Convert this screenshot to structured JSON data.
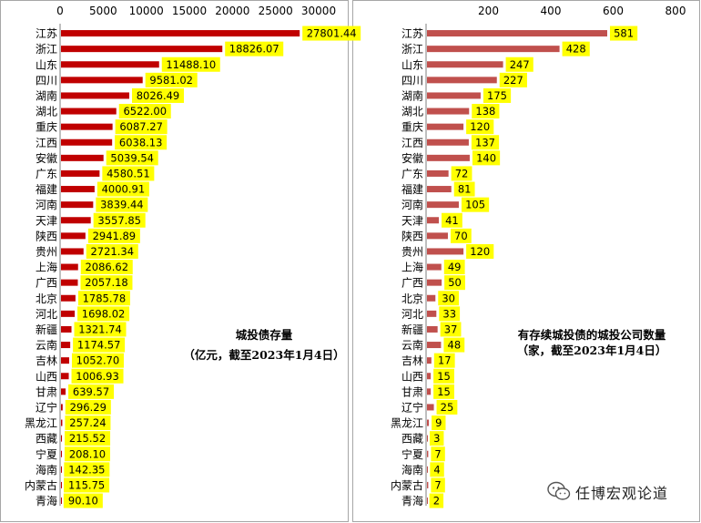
{
  "watermark": {
    "text": "任博宏观论道",
    "icon": "wechat-icon"
  },
  "chart_data": [
    {
      "type": "bar",
      "orientation": "horizontal",
      "title": "城投债存量",
      "subtitle": "（亿元，截至2023年1月4日）",
      "xlim": [
        0,
        30000
      ],
      "xticks": [
        0,
        5000,
        10000,
        15000,
        20000,
        25000,
        30000
      ],
      "bar_color": "#c00000",
      "label_bg": "#ffff00",
      "categories": [
        "江苏",
        "浙江",
        "山东",
        "四川",
        "湖南",
        "湖北",
        "重庆",
        "江西",
        "安徽",
        "广东",
        "福建",
        "河南",
        "天津",
        "陕西",
        "贵州",
        "上海",
        "广西",
        "北京",
        "河北",
        "新疆",
        "云南",
        "吉林",
        "山西",
        "甘肃",
        "辽宁",
        "黑龙江",
        "西藏",
        "宁夏",
        "海南",
        "内蒙古",
        "青海"
      ],
      "values": [
        27801.44,
        18826.07,
        11488.1,
        9581.02,
        8026.49,
        6522.0,
        6087.27,
        6038.13,
        5039.54,
        4580.51,
        4000.91,
        3839.44,
        3557.85,
        2941.89,
        2721.34,
        2086.62,
        2057.18,
        1785.78,
        1698.02,
        1321.74,
        1174.57,
        1052.7,
        1006.93,
        639.57,
        296.29,
        257.24,
        215.52,
        208.1,
        142.35,
        115.75,
        90.1
      ],
      "labels": [
        "27801.44",
        "18826.07",
        "11488.10",
        "9581.02",
        "8026.49",
        "6522.00",
        "6087.27",
        "6038.13",
        "5039.54",
        "4580.51",
        "4000.91",
        "3839.44",
        "3557.85",
        "2941.89",
        "2721.34",
        "2086.62",
        "2057.18",
        "1785.78",
        "1698.02",
        "1321.74",
        "1174.57",
        "1052.70",
        "1006.93",
        "639.57",
        "296.29",
        "257.24",
        "215.52",
        "208.10",
        "142.35",
        "115.75",
        "90.10"
      ]
    },
    {
      "type": "bar",
      "orientation": "horizontal",
      "title": "有存续城投债的城投公司数量",
      "subtitle": "（家，截至2023年1月4日）",
      "xlim": [
        0,
        800
      ],
      "xticks": [
        200,
        400,
        600,
        800
      ],
      "bar_color": "#c0504d",
      "label_bg": "#ffff00",
      "categories": [
        "江苏",
        "浙江",
        "山东",
        "四川",
        "湖南",
        "湖北",
        "重庆",
        "江西",
        "安徽",
        "广东",
        "福建",
        "河南",
        "天津",
        "陕西",
        "贵州",
        "上海",
        "广西",
        "北京",
        "河北",
        "新疆",
        "云南",
        "吉林",
        "山西",
        "甘肃",
        "辽宁",
        "黑龙江",
        "西藏",
        "宁夏",
        "海南",
        "内蒙古",
        "青海"
      ],
      "values": [
        581,
        428,
        247,
        227,
        175,
        138,
        120,
        137,
        140,
        72,
        81,
        105,
        41,
        70,
        120,
        49,
        50,
        30,
        33,
        37,
        48,
        17,
        15,
        15,
        25,
        9,
        3,
        7,
        4,
        7,
        2
      ],
      "labels": [
        "581",
        "428",
        "247",
        "227",
        "175",
        "138",
        "120",
        "137",
        "140",
        "72",
        "81",
        "105",
        "41",
        "70",
        "120",
        "49",
        "50",
        "30",
        "33",
        "37",
        "48",
        "17",
        "15",
        "15",
        "25",
        "9",
        "3",
        "7",
        "4",
        "7",
        "2"
      ]
    }
  ]
}
